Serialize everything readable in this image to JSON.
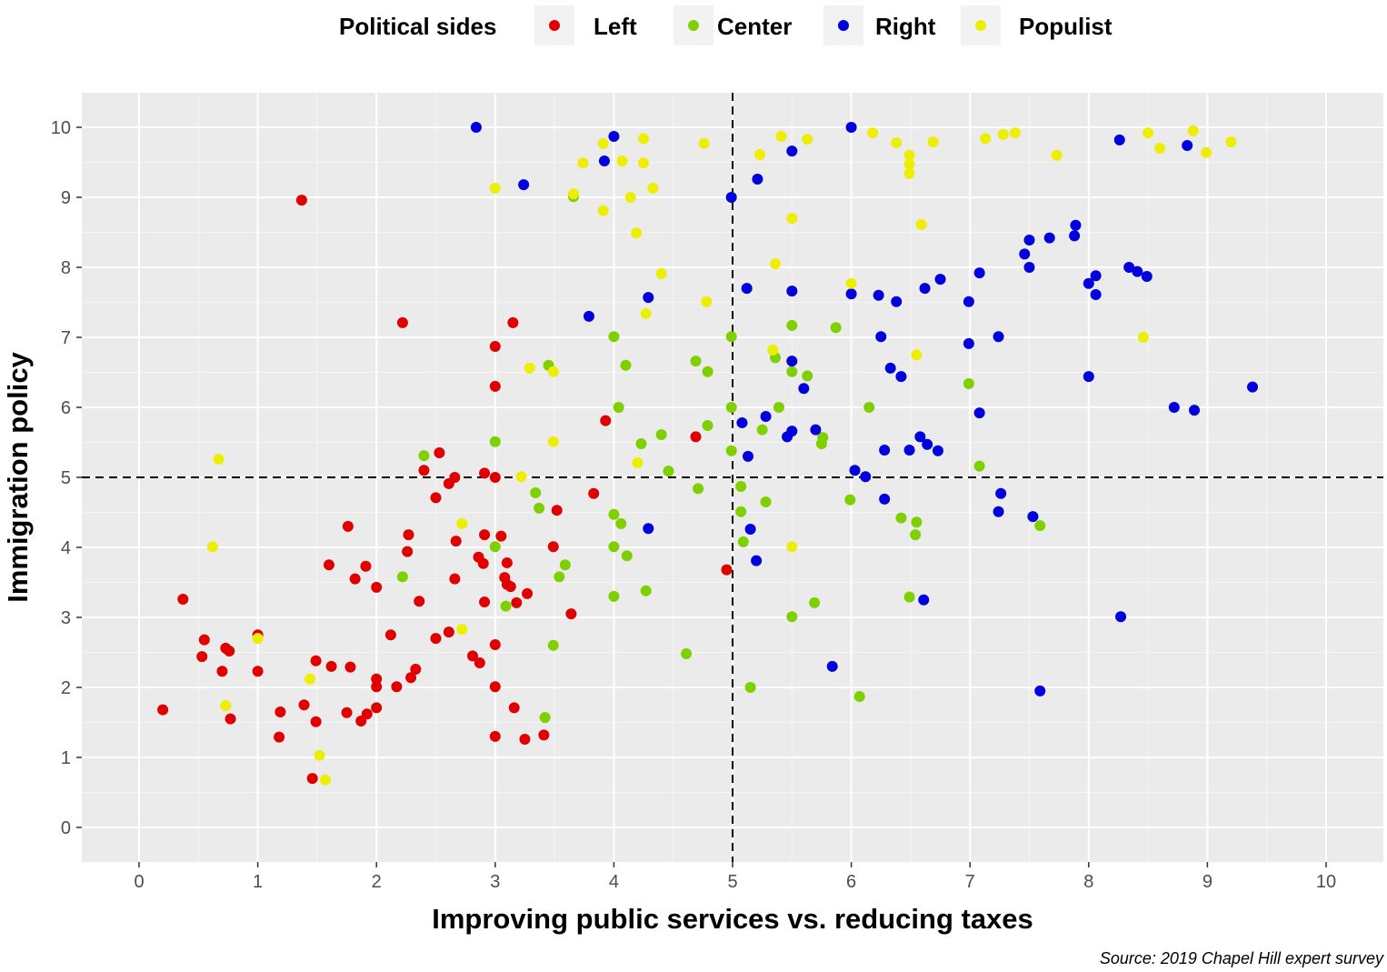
{
  "chart_data": {
    "type": "scatter",
    "title": "",
    "xlabel": "Improving public services vs. reducing taxes",
    "ylabel": "Immigration policy",
    "caption": "Source: 2019 Chapel Hill expert survey",
    "xlim": [
      -0.5,
      10.5
    ],
    "ylim": [
      -0.5,
      10.5
    ],
    "xticks": [
      "0",
      "1",
      "2",
      "3",
      "4",
      "5",
      "6",
      "7",
      "8",
      "9",
      "10"
    ],
    "yticks": [
      "0",
      "1",
      "2",
      "3",
      "4",
      "5",
      "6",
      "7",
      "8",
      "9",
      "10"
    ],
    "grid": true,
    "reference_lines": {
      "x": 5,
      "y": 5,
      "style": "dashed"
    },
    "legend": {
      "title": "Political sides",
      "placement": "top"
    },
    "series": [
      {
        "name": "Left",
        "color": "#E00000",
        "points": [
          [
            1.37,
            8.96
          ],
          [
            2.22,
            7.21
          ],
          [
            3.15,
            7.21
          ],
          [
            3.0,
            6.87
          ],
          [
            3.0,
            6.3
          ],
          [
            3.93,
            5.81
          ],
          [
            4.69,
            5.58
          ],
          [
            2.53,
            5.35
          ],
          [
            2.4,
            5.1
          ],
          [
            2.66,
            5.0
          ],
          [
            2.91,
            5.06
          ],
          [
            3.0,
            5.0
          ],
          [
            2.61,
            4.91
          ],
          [
            2.5,
            4.71
          ],
          [
            3.83,
            4.77
          ],
          [
            3.52,
            4.53
          ],
          [
            1.76,
            4.3
          ],
          [
            2.27,
            4.18
          ],
          [
            2.91,
            4.18
          ],
          [
            3.05,
            4.16
          ],
          [
            2.67,
            4.09
          ],
          [
            3.49,
            4.01
          ],
          [
            2.26,
            3.94
          ],
          [
            1.6,
            3.75
          ],
          [
            1.91,
            3.73
          ],
          [
            2.86,
            3.86
          ],
          [
            2.9,
            3.77
          ],
          [
            3.1,
            3.78
          ],
          [
            1.82,
            3.55
          ],
          [
            2.66,
            3.55
          ],
          [
            3.08,
            3.57
          ],
          [
            3.1,
            3.47
          ],
          [
            3.13,
            3.44
          ],
          [
            2.0,
            3.43
          ],
          [
            4.95,
            3.68
          ],
          [
            0.37,
            3.26
          ],
          [
            2.36,
            3.23
          ],
          [
            2.91,
            3.22
          ],
          [
            3.18,
            3.21
          ],
          [
            3.27,
            3.34
          ],
          [
            3.64,
            3.05
          ],
          [
            1.0,
            2.75
          ],
          [
            2.12,
            2.75
          ],
          [
            0.55,
            2.68
          ],
          [
            2.61,
            2.79
          ],
          [
            2.5,
            2.7
          ],
          [
            3.0,
            2.61
          ],
          [
            0.73,
            2.56
          ],
          [
            0.76,
            2.52
          ],
          [
            0.53,
            2.44
          ],
          [
            2.81,
            2.45
          ],
          [
            2.87,
            2.35
          ],
          [
            1.49,
            2.38
          ],
          [
            0.7,
            2.23
          ],
          [
            1.0,
            2.23
          ],
          [
            1.62,
            2.3
          ],
          [
            1.78,
            2.29
          ],
          [
            2.33,
            2.26
          ],
          [
            2.29,
            2.14
          ],
          [
            2.0,
            2.12
          ],
          [
            2.0,
            2.01
          ],
          [
            2.17,
            2.01
          ],
          [
            3.0,
            2.01
          ],
          [
            0.2,
            1.68
          ],
          [
            1.39,
            1.75
          ],
          [
            1.75,
            1.64
          ],
          [
            1.19,
            1.65
          ],
          [
            2.0,
            1.71
          ],
          [
            1.92,
            1.62
          ],
          [
            1.87,
            1.52
          ],
          [
            0.77,
            1.55
          ],
          [
            1.49,
            1.51
          ],
          [
            3.16,
            1.71
          ],
          [
            3.0,
            1.3
          ],
          [
            3.25,
            1.26
          ],
          [
            3.41,
            1.32
          ],
          [
            1.18,
            1.29
          ],
          [
            1.46,
            0.7
          ]
        ]
      },
      {
        "name": "Center",
        "color": "#7ED000",
        "points": [
          [
            3.66,
            9.01
          ],
          [
            4.0,
            7.01
          ],
          [
            4.99,
            7.01
          ],
          [
            4.69,
            6.66
          ],
          [
            4.79,
            6.51
          ],
          [
            3.45,
            6.6
          ],
          [
            4.1,
            6.6
          ],
          [
            5.5,
            7.17
          ],
          [
            5.87,
            7.14
          ],
          [
            5.36,
            6.71
          ],
          [
            5.5,
            6.51
          ],
          [
            5.63,
            6.45
          ],
          [
            6.99,
            6.34
          ],
          [
            4.04,
            6.0
          ],
          [
            4.99,
            6.0
          ],
          [
            5.39,
            6.0
          ],
          [
            6.15,
            6.0
          ],
          [
            3.0,
            5.51
          ],
          [
            4.79,
            5.74
          ],
          [
            5.25,
            5.68
          ],
          [
            4.4,
            5.61
          ],
          [
            4.23,
            5.48
          ],
          [
            5.76,
            5.57
          ],
          [
            5.75,
            5.48
          ],
          [
            4.99,
            5.38
          ],
          [
            2.4,
            5.31
          ],
          [
            4.46,
            5.09
          ],
          [
            7.08,
            5.16
          ],
          [
            3.34,
            4.78
          ],
          [
            5.07,
            4.87
          ],
          [
            4.71,
            4.84
          ],
          [
            3.37,
            4.56
          ],
          [
            5.28,
            4.65
          ],
          [
            5.07,
            4.51
          ],
          [
            4.0,
            4.47
          ],
          [
            4.06,
            4.34
          ],
          [
            5.99,
            4.68
          ],
          [
            6.42,
            4.42
          ],
          [
            6.55,
            4.36
          ],
          [
            7.59,
            4.31
          ],
          [
            6.54,
            4.18
          ],
          [
            3.0,
            4.01
          ],
          [
            4.0,
            4.01
          ],
          [
            4.11,
            3.88
          ],
          [
            5.09,
            4.08
          ],
          [
            3.59,
            3.75
          ],
          [
            3.54,
            3.58
          ],
          [
            2.22,
            3.58
          ],
          [
            3.09,
            3.16
          ],
          [
            4.27,
            3.38
          ],
          [
            4.0,
            3.3
          ],
          [
            5.69,
            3.21
          ],
          [
            6.49,
            3.29
          ],
          [
            5.5,
            3.01
          ],
          [
            3.49,
            2.6
          ],
          [
            4.61,
            2.48
          ],
          [
            5.15,
            2.0
          ],
          [
            6.07,
            1.87
          ],
          [
            3.42,
            1.57
          ]
        ]
      },
      {
        "name": "Right",
        "color": "#0000DD",
        "points": [
          [
            2.84,
            10.0
          ],
          [
            4.0,
            9.87
          ],
          [
            3.92,
            9.52
          ],
          [
            3.24,
            9.18
          ],
          [
            5.5,
            9.66
          ],
          [
            6.0,
            10.0
          ],
          [
            4.99,
            9.0
          ],
          [
            5.21,
            9.26
          ],
          [
            8.26,
            9.82
          ],
          [
            8.83,
            9.74
          ],
          [
            7.46,
            8.19
          ],
          [
            7.5,
            8.39
          ],
          [
            7.67,
            8.42
          ],
          [
            7.89,
            8.6
          ],
          [
            7.88,
            8.45
          ],
          [
            7.5,
            8.0
          ],
          [
            8.34,
            8.0
          ],
          [
            8.41,
            7.94
          ],
          [
            8.49,
            7.87
          ],
          [
            8.06,
            7.88
          ],
          [
            8.0,
            7.77
          ],
          [
            8.06,
            7.61
          ],
          [
            7.08,
            7.92
          ],
          [
            6.75,
            7.83
          ],
          [
            6.62,
            7.7
          ],
          [
            6.0,
            7.62
          ],
          [
            6.23,
            7.6
          ],
          [
            6.38,
            7.51
          ],
          [
            6.99,
            7.51
          ],
          [
            5.12,
            7.7
          ],
          [
            5.5,
            7.66
          ],
          [
            4.29,
            7.57
          ],
          [
            3.79,
            7.3
          ],
          [
            6.25,
            7.01
          ],
          [
            7.24,
            7.01
          ],
          [
            6.99,
            6.91
          ],
          [
            5.5,
            6.66
          ],
          [
            6.33,
            6.56
          ],
          [
            6.42,
            6.44
          ],
          [
            8.0,
            6.44
          ],
          [
            9.38,
            6.29
          ],
          [
            5.6,
            6.27
          ],
          [
            8.72,
            6.0
          ],
          [
            8.89,
            5.96
          ],
          [
            7.08,
            5.92
          ],
          [
            5.28,
            5.87
          ],
          [
            5.08,
            5.78
          ],
          [
            5.46,
            5.58
          ],
          [
            5.5,
            5.66
          ],
          [
            5.7,
            5.68
          ],
          [
            6.58,
            5.58
          ],
          [
            6.64,
            5.47
          ],
          [
            6.73,
            5.38
          ],
          [
            6.28,
            5.39
          ],
          [
            6.49,
            5.39
          ],
          [
            5.13,
            5.3
          ],
          [
            6.03,
            5.1
          ],
          [
            6.12,
            5.01
          ],
          [
            6.28,
            4.69
          ],
          [
            7.26,
            4.77
          ],
          [
            7.24,
            4.51
          ],
          [
            7.53,
            4.44
          ],
          [
            4.29,
            4.27
          ],
          [
            5.15,
            4.26
          ],
          [
            5.2,
            3.81
          ],
          [
            6.61,
            3.25
          ],
          [
            8.27,
            3.01
          ],
          [
            5.84,
            2.3
          ],
          [
            7.59,
            1.95
          ]
        ]
      },
      {
        "name": "Populist",
        "color": "#EEEE00",
        "points": [
          [
            3.91,
            9.77
          ],
          [
            4.25,
            9.84
          ],
          [
            4.07,
            9.52
          ],
          [
            3.74,
            9.49
          ],
          [
            4.25,
            9.49
          ],
          [
            3.0,
            9.13
          ],
          [
            4.33,
            9.13
          ],
          [
            3.66,
            9.05
          ],
          [
            4.14,
            9.0
          ],
          [
            3.91,
            8.81
          ],
          [
            4.19,
            8.49
          ],
          [
            4.76,
            9.77
          ],
          [
            5.41,
            9.87
          ],
          [
            5.63,
            9.83
          ],
          [
            5.23,
            9.61
          ],
          [
            5.5,
            8.7
          ],
          [
            6.18,
            9.92
          ],
          [
            6.38,
            9.78
          ],
          [
            6.69,
            9.79
          ],
          [
            6.49,
            9.6
          ],
          [
            6.49,
            9.47
          ],
          [
            6.49,
            9.34
          ],
          [
            6.59,
            8.61
          ],
          [
            7.13,
            9.84
          ],
          [
            7.28,
            9.9
          ],
          [
            7.38,
            9.92
          ],
          [
            7.73,
            9.6
          ],
          [
            8.5,
            9.92
          ],
          [
            8.6,
            9.7
          ],
          [
            8.88,
            9.95
          ],
          [
            8.99,
            9.64
          ],
          [
            9.2,
            9.79
          ],
          [
            8.46,
            7.0
          ],
          [
            5.36,
            8.05
          ],
          [
            6.0,
            7.77
          ],
          [
            4.4,
            7.91
          ],
          [
            4.78,
            7.51
          ],
          [
            4.27,
            7.34
          ],
          [
            5.34,
            6.82
          ],
          [
            6.55,
            6.75
          ],
          [
            3.29,
            6.56
          ],
          [
            3.49,
            6.51
          ],
          [
            3.49,
            5.51
          ],
          [
            0.67,
            5.26
          ],
          [
            3.22,
            5.01
          ],
          [
            4.2,
            5.21
          ],
          [
            2.72,
            4.34
          ],
          [
            0.62,
            4.01
          ],
          [
            5.5,
            4.01
          ],
          [
            1.0,
            2.7
          ],
          [
            2.72,
            2.83
          ],
          [
            1.44,
            2.12
          ],
          [
            0.73,
            1.74
          ],
          [
            1.52,
            1.03
          ],
          [
            1.57,
            0.68
          ]
        ]
      }
    ]
  }
}
